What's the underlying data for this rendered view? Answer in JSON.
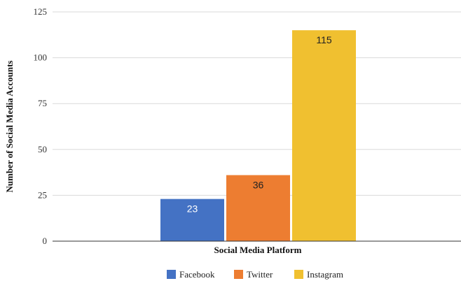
{
  "chart_data": {
    "type": "bar",
    "title": "",
    "xlabel": "Social Media Platform",
    "ylabel": "Number of Social Media Accounts",
    "ylim": [
      0,
      125
    ],
    "yticks": [
      0,
      25,
      50,
      75,
      100,
      125
    ],
    "grid": true,
    "legend_position": "bottom",
    "series": [
      {
        "name": "Facebook",
        "values": [
          23
        ],
        "color": "#4472C4",
        "label_color": "#ffffff"
      },
      {
        "name": "Twitter",
        "values": [
          36
        ],
        "color": "#ED7D31",
        "label_color": "#222222"
      },
      {
        "name": "Instagram",
        "values": [
          115
        ],
        "color": "#F0C030",
        "label_color": "#222222"
      }
    ]
  }
}
